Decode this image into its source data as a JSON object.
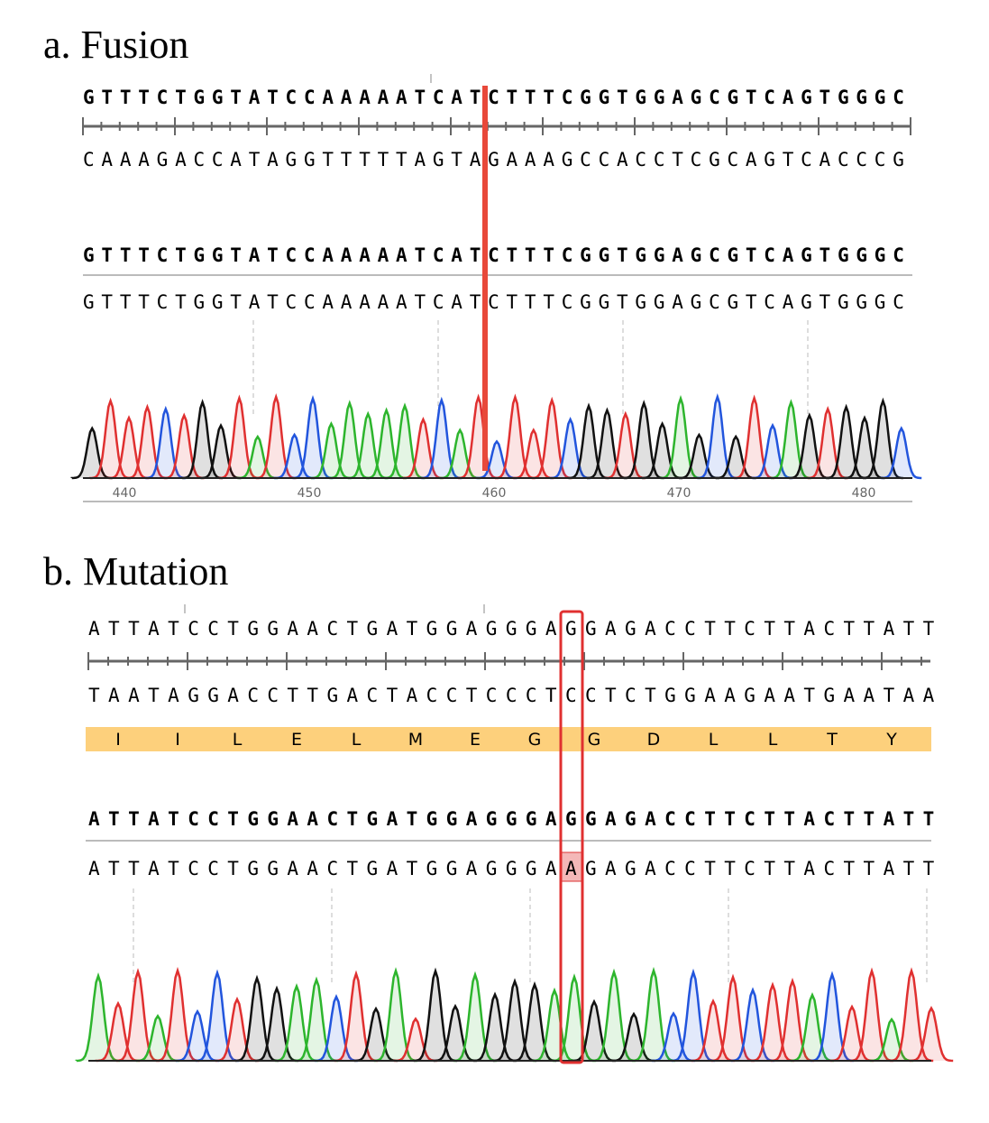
{
  "fusion": {
    "title": "a. Fusion",
    "reference_top": "GTTTCTGGTATCCAAAAATCATCTTTCGGTGGAGCGTCAGTGGGC",
    "reference_complement": "CAAAGACCATAGGTTTTTAGTAGAAAGCCACCTCGCAGTCACCCG",
    "consensus": "GTTTCTGGTATCCAAAAATCATCTTTCGGTGGAGCGTCAGTGGGC",
    "read": "GTTTCTGGTATCCAAAAATCATCTTTCGGTGGAGCGTCAGTGGGC",
    "positions": [
      440,
      450,
      460,
      470,
      480
    ]
  },
  "mutation": {
    "title": "b. Mutation",
    "reference_top": "ATTATCCTGGAACTGATGGAGGGAGGAGACCTTCTTACTTATT",
    "reference_complement": "TAATAGGACCTTGACTACCTCCCTCCTCTGGAAGAATGAATAA",
    "amino_acids": [
      "I",
      "I",
      "L",
      "E",
      "L",
      "M",
      "E",
      "G",
      "G",
      "D",
      "L",
      "L",
      "T",
      "Y"
    ],
    "consensus": "ATTATCCTGGAACTGATGGAGGGAGGAGACCTTCTTACTTATT",
    "read": "ATTATCCTGGAACTGATGGAGGGAAGAGACCTTCTTACTTATT"
  }
}
